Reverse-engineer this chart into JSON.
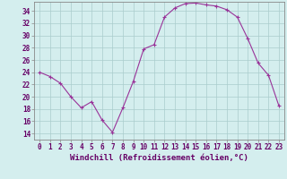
{
  "hours": [
    0,
    1,
    2,
    3,
    4,
    5,
    6,
    7,
    8,
    9,
    10,
    11,
    12,
    13,
    14,
    15,
    16,
    17,
    18,
    19,
    20,
    21,
    22,
    23
  ],
  "values": [
    24.0,
    23.3,
    22.2,
    20.0,
    18.2,
    19.2,
    16.2,
    14.2,
    18.2,
    22.5,
    27.8,
    28.5,
    33.0,
    34.5,
    35.2,
    35.3,
    35.0,
    34.8,
    34.2,
    33.0,
    29.5,
    25.5,
    23.5,
    18.5
  ],
  "line_color": "#993399",
  "marker": "+",
  "marker_size": 3,
  "marker_lw": 0.8,
  "line_width": 0.8,
  "bg_color": "#d4eeee",
  "grid_color": "#aacccc",
  "xlabel": "Windchill (Refroidissement éolien,°C)",
  "ylim": [
    13,
    35.5
  ],
  "xlim": [
    -0.5,
    23.5
  ],
  "yticks": [
    14,
    16,
    18,
    20,
    22,
    24,
    26,
    28,
    30,
    32,
    34
  ],
  "xticks": [
    0,
    1,
    2,
    3,
    4,
    5,
    6,
    7,
    8,
    9,
    10,
    11,
    12,
    13,
    14,
    15,
    16,
    17,
    18,
    19,
    20,
    21,
    22,
    23
  ],
  "tick_label_size": 5.5,
  "xlabel_size": 6.5,
  "axis_color": "#660066",
  "spine_color": "#888888"
}
